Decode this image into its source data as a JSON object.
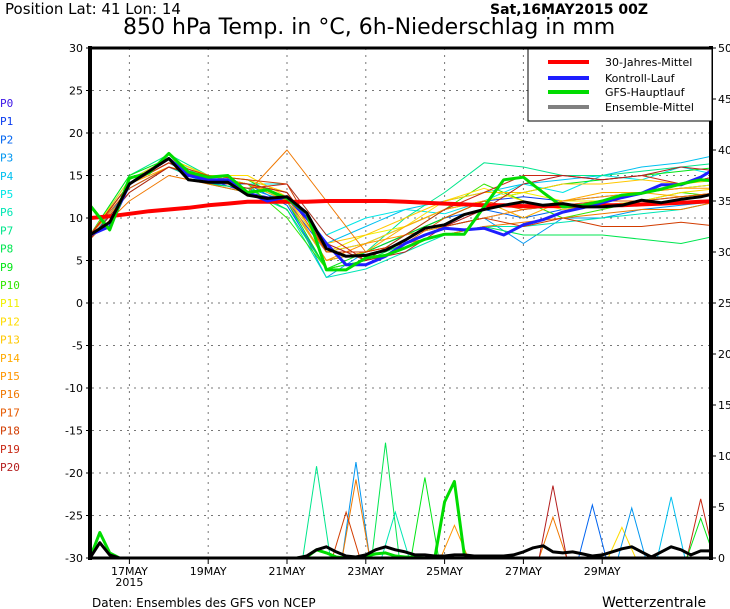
{
  "header": {
    "position": "Position   Lat: 41  Lon: 14",
    "run": "Sat,16MAY2015  00Z",
    "title": "850 hPa Temp. in °C, 6h-Niederschlag in mm"
  },
  "footer": {
    "source": "Daten: Ensembles des GFS von NCEP",
    "brand": "Wetterzentrale"
  },
  "legend": [
    {
      "label": "30-Jahres-Mittel",
      "color": "#ff0000"
    },
    {
      "label": "Kontroll-Lauf",
      "color": "#1e1eff"
    },
    {
      "label": "GFS-Hauptlauf",
      "color": "#00dc00"
    },
    {
      "label": "Ensemble-Mittel",
      "color": "#808080"
    }
  ],
  "chart_data": {
    "type": "line",
    "title": "850 hPa Temp. in °C, 6h-Niederschlag in mm",
    "ylim_left": [
      -30,
      30
    ],
    "ylim_right": [
      0,
      50
    ],
    "yticks_left": [
      "30",
      "25",
      "20",
      "15",
      "10",
      "5",
      "0",
      "-5",
      "-10",
      "-15",
      "-20",
      "-25",
      "-30"
    ],
    "yticks_right": [
      "50",
      "45",
      "40",
      "35",
      "30",
      "25",
      "20",
      "15",
      "10",
      "5",
      "0"
    ],
    "xticks": [
      {
        "label": "17MAY",
        "sub": "2015",
        "time": "17MAY 00Z"
      },
      {
        "label": "19MAY",
        "sub": "",
        "time": "19MAY 00Z"
      },
      {
        "label": "21MAY",
        "sub": "",
        "time": "21MAY 00Z"
      },
      {
        "label": "23MAY",
        "sub": "",
        "time": "23MAY 00Z"
      },
      {
        "label": "25MAY",
        "sub": "",
        "time": "25MAY 00Z"
      },
      {
        "label": "27MAY",
        "sub": "",
        "time": "27MAY 00Z"
      },
      {
        "label": "29MAY",
        "sub": "",
        "time": "29MAY 00Z"
      }
    ],
    "grid": true,
    "legend_position": "top-right",
    "times_12h": [
      "16MAY 00Z",
      "16MAY 12Z",
      "17MAY 00Z",
      "17MAY 12Z",
      "18MAY 00Z",
      "18MAY 12Z",
      "19MAY 00Z",
      "19MAY 12Z",
      "20MAY 00Z",
      "20MAY 12Z",
      "21MAY 00Z",
      "21MAY 12Z",
      "22MAY 00Z",
      "22MAY 12Z",
      "23MAY 00Z",
      "23MAY 12Z",
      "24MAY 00Z",
      "24MAY 12Z",
      "25MAY 00Z",
      "25MAY 12Z",
      "26MAY 00Z",
      "26MAY 12Z",
      "27MAY 00Z",
      "27MAY 12Z",
      "28MAY 00Z",
      "28MAY 12Z",
      "29MAY 00Z",
      "29MAY 12Z",
      "30MAY 00Z",
      "30MAY 12Z",
      "31MAY 00Z",
      "31MAY 12Z",
      "01JUN 00Z"
    ],
    "times_24h": [
      "16MAY 00Z",
      "17MAY 00Z",
      "18MAY 00Z",
      "19MAY 00Z",
      "20MAY 00Z",
      "21MAY 00Z",
      "22MAY 00Z",
      "23MAY 00Z",
      "24MAY 00Z",
      "25MAY 00Z",
      "26MAY 00Z",
      "27MAY 00Z",
      "28MAY 00Z",
      "29MAY 00Z",
      "30MAY 00Z",
      "31MAY 00Z",
      "01JUN 00Z"
    ],
    "times_6h": [
      "16MAY 00Z",
      "16MAY 06Z",
      "16MAY 12Z",
      "16MAY 18Z",
      "17MAY 00Z",
      "17MAY 06Z",
      "17MAY 12Z",
      "17MAY 18Z",
      "18MAY 00Z",
      "18MAY 06Z",
      "18MAY 12Z",
      "18MAY 18Z",
      "19MAY 00Z",
      "19MAY 06Z",
      "19MAY 12Z",
      "19MAY 18Z",
      "20MAY 00Z",
      "20MAY 06Z",
      "20MAY 12Z",
      "20MAY 18Z",
      "21MAY 00Z",
      "21MAY 06Z",
      "21MAY 12Z",
      "21MAY 18Z",
      "22MAY 00Z",
      "22MAY 06Z",
      "22MAY 12Z",
      "22MAY 18Z",
      "23MAY 00Z",
      "23MAY 06Z",
      "23MAY 12Z",
      "23MAY 18Z",
      "24MAY 00Z",
      "24MAY 06Z",
      "24MAY 12Z",
      "24MAY 18Z",
      "25MAY 00Z",
      "25MAY 06Z",
      "25MAY 12Z",
      "25MAY 18Z",
      "26MAY 00Z",
      "26MAY 06Z",
      "26MAY 12Z",
      "26MAY 18Z",
      "27MAY 00Z",
      "27MAY 06Z",
      "27MAY 12Z",
      "27MAY 18Z",
      "28MAY 00Z",
      "28MAY 06Z",
      "28MAY 12Z",
      "28MAY 18Z",
      "29MAY 00Z",
      "29MAY 06Z",
      "29MAY 12Z",
      "29MAY 18Z",
      "30MAY 00Z",
      "30MAY 06Z",
      "30MAY 12Z",
      "30MAY 18Z",
      "31MAY 00Z",
      "31MAY 06Z",
      "31MAY 12Z",
      "31MAY 18Z",
      "01JUN 00Z"
    ],
    "temperature": {
      "climate": [
        10,
        10.2,
        10.5,
        10.8,
        11.0,
        11.2,
        11.5,
        11.7,
        11.9,
        11.9,
        11.9,
        11.9,
        12.0,
        12.0,
        12.0,
        12.0,
        11.9,
        11.8,
        11.7,
        11.6,
        11.5,
        11.5,
        11.4,
        11.4,
        11.4,
        11.4,
        11.5,
        11.5,
        11.6,
        11.7,
        11.8,
        11.9,
        12.0
      ],
      "control": [
        8,
        9,
        14,
        15.5,
        17,
        15,
        14.5,
        14.5,
        13,
        12,
        12.5,
        10,
        7,
        4.5,
        4.5,
        5.5,
        7,
        8,
        8.8,
        8.6,
        8.8,
        8,
        9.2,
        9.8,
        10.7,
        11.2,
        11.8,
        12.4,
        12.9,
        13.9,
        13.9,
        14.8,
        16.2
      ],
      "gfs": [
        11.5,
        8.6,
        14.7,
        15.3,
        17.6,
        15.4,
        14.8,
        15,
        13,
        13.3,
        12.3,
        10.6,
        3.9,
        3.9,
        5.3,
        5.6,
        6.5,
        7.5,
        8.1,
        8.1,
        11.3,
        14.5,
        14.8,
        13,
        11.3,
        11.5,
        12,
        12.7,
        12.9,
        13.4,
        14,
        14.5,
        14.3
      ],
      "mean": [
        8,
        9.5,
        14,
        15.5,
        17,
        14.5,
        14.2,
        14.2,
        12.7,
        12.3,
        12.5,
        10.6,
        6.4,
        5.5,
        5.6,
        6.2,
        7.4,
        8.8,
        9.2,
        10.4,
        11,
        11.5,
        11.9,
        11.5,
        11.7,
        11.3,
        11.3,
        11.5,
        12.1,
        11.8,
        12.2,
        12.5,
        13
      ],
      "members": [
        {
          "name": "P0",
          "color": "#3c14e6",
          "values": [
            8,
            14,
            17,
            14.5,
            13,
            12,
            5,
            6,
            8,
            9,
            10,
            11,
            11.5,
            12,
            13,
            14,
            15
          ]
        },
        {
          "name": "P1",
          "color": "#0a3cf0",
          "values": [
            8,
            14.5,
            17,
            15,
            14,
            12,
            6,
            7,
            9,
            11,
            12,
            12.5,
            12,
            12.5,
            13,
            13.5,
            14
          ]
        },
        {
          "name": "P2",
          "color": "#0064f0",
          "values": [
            8,
            14,
            16.5,
            14,
            14,
            11.5,
            4,
            5,
            8,
            10,
            11,
            10,
            11,
            11.5,
            12,
            12.5,
            13
          ]
        },
        {
          "name": "P3",
          "color": "#0096f0",
          "values": [
            7.5,
            13.5,
            16,
            14,
            13.5,
            12,
            3,
            6,
            8,
            9,
            10,
            7,
            10,
            10,
            11,
            11.5,
            12
          ]
        },
        {
          "name": "P4",
          "color": "#00c0f0",
          "values": [
            8,
            14,
            17,
            14.5,
            14,
            13,
            7,
            9,
            11,
            12,
            13,
            14,
            14.5,
            15,
            16,
            16.5,
            17.5
          ]
        },
        {
          "name": "P5",
          "color": "#00e6e6",
          "values": [
            8,
            14.5,
            17,
            15,
            14,
            14,
            8,
            10,
            11,
            10.5,
            12,
            14,
            13,
            15,
            14.5,
            16,
            15
          ]
        },
        {
          "name": "P6",
          "color": "#00e6b4",
          "values": [
            7.5,
            13,
            16,
            14,
            13,
            11,
            3,
            4,
            6,
            8,
            9,
            9,
            9.5,
            10,
            10.5,
            11,
            12
          ]
        },
        {
          "name": "P7",
          "color": "#00e68c",
          "values": [
            8,
            15,
            17.5,
            15,
            14,
            12,
            5,
            6,
            10,
            13,
            16.5,
            16,
            15,
            15,
            15.5,
            16,
            16.5
          ]
        },
        {
          "name": "P8",
          "color": "#00e650",
          "values": [
            8,
            14,
            17,
            14,
            13.5,
            11,
            4,
            5,
            7,
            8,
            9,
            8,
            8,
            8,
            7.5,
            7,
            8
          ]
        },
        {
          "name": "P9",
          "color": "#00e614",
          "values": [
            8,
            15,
            17,
            15,
            14.5,
            12,
            4,
            6,
            8,
            10,
            12,
            13,
            14,
            14.5,
            15,
            15.5,
            16
          ]
        },
        {
          "name": "P10",
          "color": "#32e600",
          "values": [
            8,
            14,
            16.5,
            14.5,
            14,
            10,
            4,
            5,
            8,
            11,
            14,
            12,
            10,
            11,
            12,
            13,
            12.5
          ]
        },
        {
          "name": "P11",
          "color": "#f0f000",
          "values": [
            8,
            14,
            17,
            15,
            14,
            13,
            6,
            8,
            9,
            11,
            12,
            13,
            12,
            12,
            13,
            13.5,
            14
          ]
        },
        {
          "name": "P12",
          "color": "#ffdc00",
          "values": [
            8,
            14.5,
            17,
            15,
            15,
            12.5,
            6,
            7,
            9,
            12,
            13.5,
            12,
            11,
            11.5,
            12,
            13,
            13.5
          ]
        },
        {
          "name": "P13",
          "color": "#ffc800",
          "values": [
            8,
            14,
            16.5,
            15,
            14.5,
            13,
            7,
            8,
            10,
            12,
            13,
            13,
            14,
            14,
            14.5,
            14,
            14.5
          ]
        },
        {
          "name": "P14",
          "color": "#ffaa00",
          "values": [
            8,
            14,
            16,
            15,
            14,
            12,
            5,
            6,
            9,
            11,
            12,
            10,
            12,
            13,
            13,
            12.5,
            13
          ]
        },
        {
          "name": "P15",
          "color": "#ff9600",
          "values": [
            8,
            13,
            16,
            14.5,
            14,
            12.5,
            5,
            7,
            8,
            9,
            10,
            11,
            12,
            12.5,
            13,
            13.5,
            13.5
          ]
        },
        {
          "name": "P16",
          "color": "#f07800",
          "values": [
            7.5,
            12,
            15,
            14,
            13,
            18,
            12,
            6,
            7,
            8,
            9,
            9.5,
            10,
            10.5,
            11,
            11,
            12
          ]
        },
        {
          "name": "P17",
          "color": "#e65a00",
          "values": [
            8,
            13.5,
            16,
            14.5,
            14,
            13,
            6,
            6,
            7,
            10,
            12,
            11,
            11.5,
            12,
            12,
            12.5,
            13
          ]
        },
        {
          "name": "P18",
          "color": "#d23c00",
          "values": [
            8,
            14,
            16.5,
            15,
            14.5,
            14,
            6,
            6,
            7,
            9,
            10,
            9,
            10,
            9,
            9,
            9.5,
            9
          ]
        },
        {
          "name": "P19",
          "color": "#c82814",
          "values": [
            8,
            14,
            16.5,
            14.5,
            13.5,
            14,
            8,
            5,
            8,
            11,
            13,
            15,
            15,
            14.5,
            15,
            14,
            15
          ]
        },
        {
          "name": "P20",
          "color": "#b41e1e",
          "values": [
            7.5,
            13,
            16,
            14.5,
            14,
            13,
            7,
            5,
            6,
            9,
            11,
            14,
            15,
            14.5,
            15,
            16,
            15.5
          ]
        }
      ]
    },
    "precipitation": {
      "mean": [
        0,
        1.5,
        0.3,
        0,
        0,
        0,
        0,
        0,
        0,
        0,
        0,
        0,
        0,
        0,
        0,
        0,
        0,
        0,
        0,
        0,
        0,
        0,
        0.2,
        0.8,
        1.1,
        0.6,
        0.2,
        0.1,
        0.3,
        0.8,
        1.1,
        0.8,
        0.6,
        0.3,
        0.3,
        0.2,
        0.2,
        0.3,
        0.3,
        0.2,
        0.2,
        0.2,
        0.2,
        0.3,
        0.6,
        1.0,
        1.2,
        0.6,
        0.5,
        0.6,
        0.4,
        0.2,
        0.3,
        0.6,
        0.9,
        1.1,
        0.6,
        0.1,
        0.6,
        1.1,
        0.8,
        0.3,
        0.7,
        0.7,
        0.6
      ],
      "gfs": [
        0,
        2.5,
        0.5,
        0,
        0,
        0,
        0,
        0,
        0,
        0,
        0,
        0,
        0,
        0,
        0,
        0,
        0,
        0,
        0,
        0,
        0,
        0,
        0.1,
        0.8,
        0.5,
        0.1,
        0,
        0,
        0.2,
        0.4,
        0.5,
        0.2,
        0.1,
        0.1,
        0,
        0,
        5.5,
        7.5,
        0.3,
        0.1,
        0.1,
        0,
        0,
        0,
        0,
        0,
        0,
        0,
        0,
        0,
        0,
        0,
        0,
        0,
        0,
        0,
        0,
        0,
        0,
        0,
        0,
        0,
        0,
        0,
        0
      ],
      "member_peaks": [
        {
          "member": "P7",
          "time": "21MAY 18Z",
          "mm": 9.0
        },
        {
          "member": "P3",
          "time": "22MAY 18Z",
          "mm": 9.4
        },
        {
          "member": "P16",
          "time": "22MAY 18Z",
          "mm": 7.7
        },
        {
          "member": "P18",
          "time": "22MAY 12Z",
          "mm": 4.5
        },
        {
          "member": "P8",
          "time": "23MAY 12Z",
          "mm": 11.3
        },
        {
          "member": "P6",
          "time": "23MAY 18Z",
          "mm": 4.5
        },
        {
          "member": "P9",
          "time": "24MAY 12Z",
          "mm": 7.9
        },
        {
          "member": "P15",
          "time": "25MAY 06Z",
          "mm": 3.2
        },
        {
          "member": "P16",
          "time": "27MAY 18Z",
          "mm": 4.0
        },
        {
          "member": "P20",
          "time": "27MAY 18Z",
          "mm": 7.1
        },
        {
          "member": "P2",
          "time": "28MAY 18Z",
          "mm": 5.2
        },
        {
          "member": "P12",
          "time": "29MAY 12Z",
          "mm": 3.0
        },
        {
          "member": "P3",
          "time": "29MAY 18Z",
          "mm": 4.9
        },
        {
          "member": "P4",
          "time": "30MAY 18Z",
          "mm": 6.0
        },
        {
          "member": "P19",
          "time": "31MAY 12Z",
          "mm": 5.8
        },
        {
          "member": "P9",
          "time": "31MAY 12Z",
          "mm": 3.9
        }
      ]
    }
  }
}
